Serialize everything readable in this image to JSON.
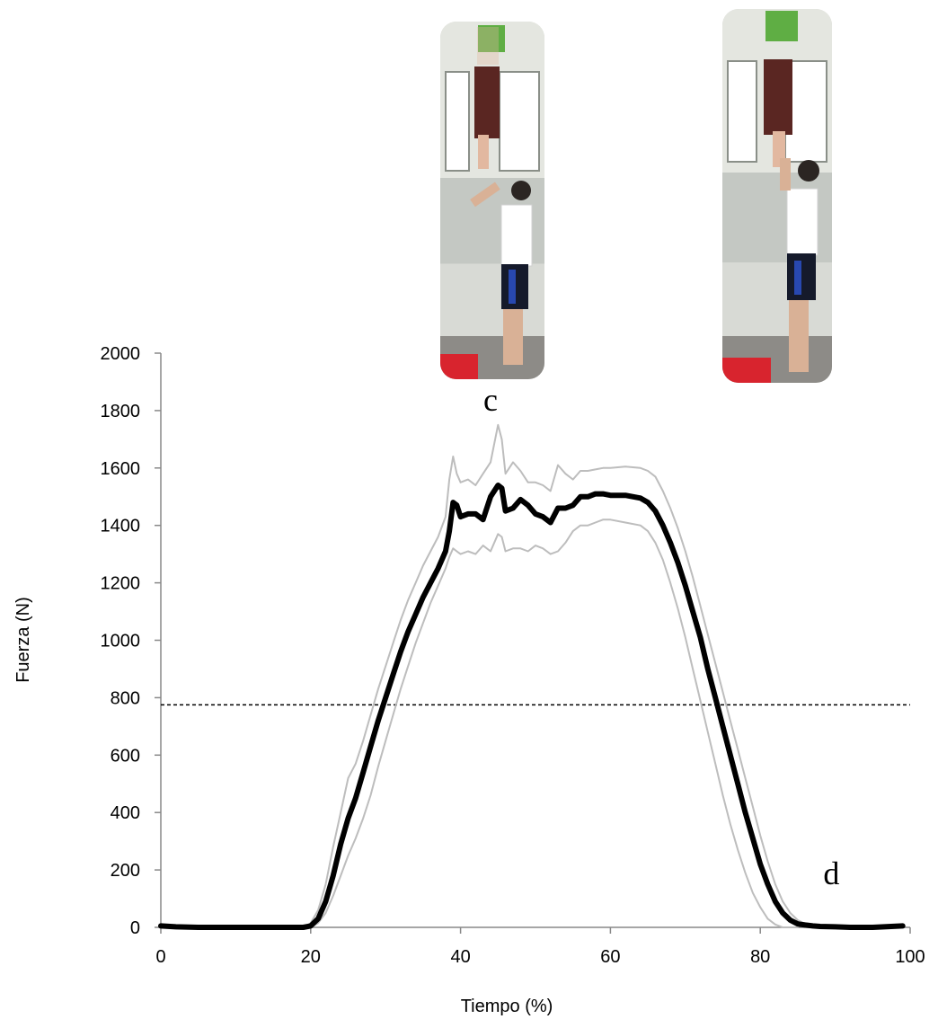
{
  "chart_data": {
    "type": "line",
    "title": "",
    "xlabel": "Tiempo (%)",
    "ylabel": "Fuerza (N)",
    "xlim": [
      0,
      100
    ],
    "ylim": [
      0,
      2000
    ],
    "xticks": [
      "0",
      "20",
      "40",
      "60",
      "80",
      "100"
    ],
    "yticks": [
      "0",
      "200",
      "400",
      "600",
      "800",
      "1000",
      "1200",
      "1400",
      "1600",
      "1800",
      "2000"
    ],
    "grid": false,
    "legend": "none",
    "reference_line": {
      "y": 775,
      "style": "dashed",
      "color": "#000000"
    },
    "annotations": [
      {
        "text": "c",
        "x": 44,
        "y": 1800
      },
      {
        "text": "d",
        "x": 89.5,
        "y": 150
      }
    ],
    "series": [
      {
        "role": "mean",
        "color": "#000000",
        "x": [
          0,
          2,
          5,
          10,
          15,
          19,
          20,
          21,
          22,
          23,
          24,
          25,
          26,
          27,
          28,
          29,
          30,
          31,
          32,
          33,
          34,
          35,
          36,
          37,
          38,
          38.5,
          39,
          39.5,
          40,
          41,
          42,
          43,
          44,
          45,
          45.5,
          46,
          47,
          48,
          49,
          50,
          51,
          52,
          53,
          54,
          55,
          56,
          57,
          58,
          59,
          60,
          62,
          64,
          65,
          66,
          67,
          68,
          69,
          70,
          71,
          72,
          73,
          74,
          75,
          76,
          77,
          78,
          79,
          80,
          81,
          82,
          83,
          84,
          85,
          86,
          87,
          88,
          90,
          92,
          95,
          99
        ],
        "y": [
          5,
          2,
          0,
          0,
          0,
          0,
          5,
          30,
          90,
          180,
          290,
          380,
          450,
          540,
          630,
          720,
          800,
          880,
          960,
          1030,
          1090,
          1150,
          1200,
          1250,
          1310,
          1380,
          1480,
          1470,
          1430,
          1440,
          1440,
          1420,
          1500,
          1540,
          1530,
          1450,
          1460,
          1490,
          1470,
          1440,
          1430,
          1410,
          1460,
          1460,
          1470,
          1500,
          1500,
          1510,
          1510,
          1505,
          1505,
          1495,
          1480,
          1450,
          1400,
          1340,
          1270,
          1190,
          1100,
          1010,
          900,
          800,
          700,
          600,
          500,
          400,
          310,
          220,
          150,
          90,
          50,
          25,
          12,
          8,
          5,
          3,
          2,
          0,
          0,
          5
        ]
      },
      {
        "role": "upper",
        "color": "#bdbdbd",
        "x": [
          19,
          20,
          21,
          22,
          23,
          24,
          25,
          26,
          27,
          28,
          29,
          30,
          31,
          32,
          33,
          34,
          35,
          36,
          37,
          38,
          38.5,
          39,
          39.5,
          40,
          41,
          42,
          43,
          44,
          45,
          45.5,
          46,
          47,
          48,
          49,
          50,
          51,
          52,
          53,
          54,
          55,
          56,
          57,
          58,
          59,
          60,
          62,
          64,
          65,
          66,
          67,
          68,
          69,
          70,
          71,
          72,
          73,
          74,
          75,
          76,
          77,
          78,
          79,
          80,
          81,
          82,
          83,
          84,
          85,
          86,
          87,
          88,
          89,
          90
        ],
        "y": [
          0,
          15,
          60,
          150,
          280,
          400,
          520,
          570,
          650,
          740,
          830,
          910,
          990,
          1070,
          1140,
          1200,
          1260,
          1310,
          1360,
          1430,
          1560,
          1640,
          1580,
          1550,
          1560,
          1540,
          1580,
          1620,
          1750,
          1700,
          1580,
          1620,
          1590,
          1550,
          1550,
          1540,
          1520,
          1610,
          1580,
          1560,
          1590,
          1590,
          1595,
          1600,
          1600,
          1605,
          1600,
          1590,
          1570,
          1520,
          1460,
          1390,
          1310,
          1220,
          1120,
          1020,
          920,
          820,
          720,
          620,
          520,
          420,
          320,
          230,
          150,
          90,
          50,
          25,
          12,
          5,
          3,
          1,
          0
        ]
      },
      {
        "role": "lower",
        "color": "#bdbdbd",
        "x": [
          19,
          20,
          21,
          22,
          23,
          24,
          25,
          26,
          27,
          28,
          29,
          30,
          31,
          32,
          33,
          34,
          35,
          36,
          37,
          38,
          38.5,
          39,
          39.5,
          40,
          41,
          42,
          43,
          44,
          45,
          45.5,
          46,
          47,
          48,
          49,
          50,
          51,
          52,
          53,
          54,
          55,
          56,
          57,
          58,
          59,
          60,
          62,
          64,
          65,
          66,
          67,
          68,
          69,
          70,
          71,
          72,
          73,
          74,
          75,
          76,
          77,
          78,
          79,
          80,
          81,
          82,
          83,
          84,
          85
        ],
        "y": [
          0,
          0,
          15,
          50,
          110,
          180,
          250,
          310,
          380,
          460,
          560,
          650,
          740,
          830,
          910,
          990,
          1060,
          1130,
          1190,
          1250,
          1290,
          1320,
          1310,
          1300,
          1310,
          1300,
          1330,
          1310,
          1370,
          1360,
          1310,
          1320,
          1320,
          1310,
          1330,
          1320,
          1300,
          1310,
          1340,
          1380,
          1400,
          1400,
          1410,
          1420,
          1420,
          1410,
          1400,
          1380,
          1340,
          1280,
          1200,
          1110,
          1010,
          900,
          790,
          680,
          570,
          460,
          360,
          270,
          190,
          120,
          70,
          30,
          10,
          0,
          0,
          0
        ]
      }
    ]
  },
  "photos": [
    {
      "name": "catch-photo"
    },
    {
      "name": "landing-photo"
    }
  ]
}
